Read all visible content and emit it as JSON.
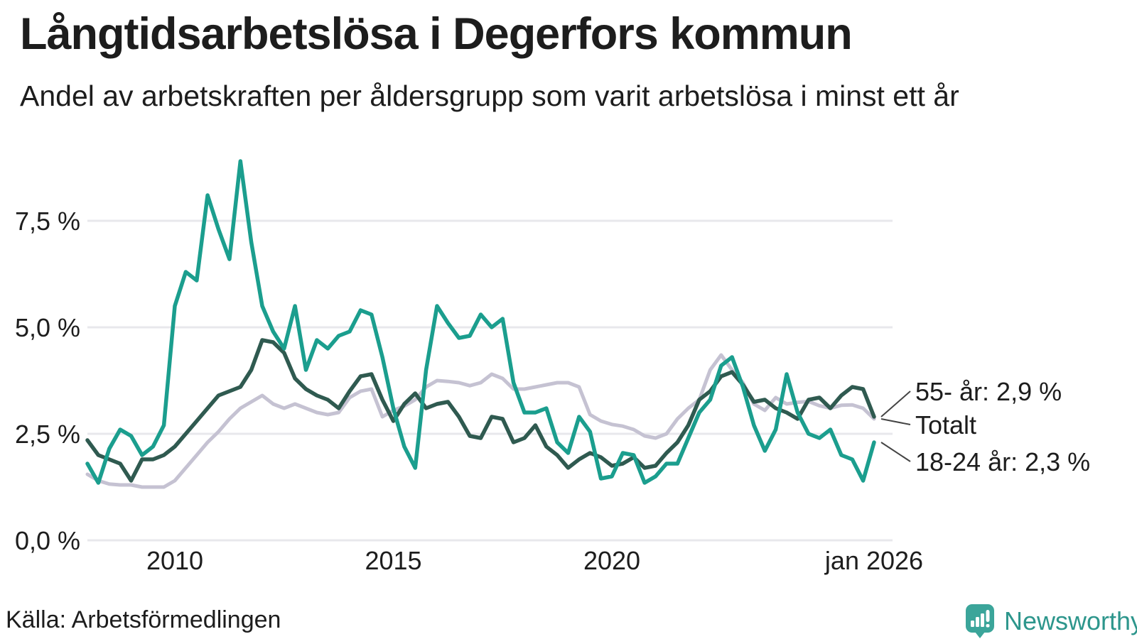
{
  "header": {
    "title": "Långtidsarbetslösa i Degerfors kommun",
    "subtitle": "Andel av arbetskraften per åldersgrupp som varit arbetslösa i minst ett år"
  },
  "source": {
    "label": "Källa: Arbetsförmedlingen"
  },
  "branding": {
    "name": "Newsworthy"
  },
  "colors": {
    "series_18_24": "#1b9e8e",
    "series_55": "#2f5a50",
    "series_total": "#c5c2d2",
    "grid": "#e8e8ec",
    "text": "#1d1d1d",
    "leader": "#444444",
    "logo_bubble": "#3ba59a",
    "logo_glyph": "#ffffff",
    "logo_text": "#2d968c"
  },
  "chart_data": {
    "type": "line",
    "title": "Långtidsarbetslösa i Degerfors kommun",
    "subtitle": "Andel av arbetskraften per åldersgrupp som varit arbetslösa i minst ett år",
    "xlabel": "",
    "ylabel": "",
    "xlim": [
      2008.0,
      2026.1
    ],
    "ylim": [
      0,
      9.5
    ],
    "grid": true,
    "legend_position": "end-labels-right",
    "y_ticks": [
      {
        "y": 0.0,
        "label": "0,0 %"
      },
      {
        "y": 2.5,
        "label": "2,5 %"
      },
      {
        "y": 5.0,
        "label": "5,0 %"
      },
      {
        "y": 7.5,
        "label": "7,5 %"
      }
    ],
    "x_ticks": [
      {
        "x": 2010,
        "label": "2010"
      },
      {
        "x": 2015,
        "label": "2015"
      },
      {
        "x": 2020,
        "label": "2020"
      },
      {
        "x": 2026,
        "label": "jan 2026"
      }
    ],
    "x": [
      2008.0,
      2008.25,
      2008.5,
      2008.75,
      2009.0,
      2009.25,
      2009.5,
      2009.75,
      2010.0,
      2010.25,
      2010.5,
      2010.75,
      2011.0,
      2011.25,
      2011.5,
      2011.75,
      2012.0,
      2012.25,
      2012.5,
      2012.75,
      2013.0,
      2013.25,
      2013.5,
      2013.75,
      2014.0,
      2014.25,
      2014.5,
      2014.75,
      2015.0,
      2015.25,
      2015.5,
      2015.75,
      2016.0,
      2016.25,
      2016.5,
      2016.75,
      2017.0,
      2017.25,
      2017.5,
      2017.75,
      2018.0,
      2018.25,
      2018.5,
      2018.75,
      2019.0,
      2019.25,
      2019.5,
      2019.75,
      2020.0,
      2020.25,
      2020.5,
      2020.75,
      2021.0,
      2021.25,
      2021.5,
      2021.75,
      2022.0,
      2022.25,
      2022.5,
      2022.75,
      2023.0,
      2023.25,
      2023.5,
      2023.75,
      2024.0,
      2024.25,
      2024.5,
      2024.75,
      2025.0,
      2025.25,
      2025.5,
      2025.75,
      2026.0
    ],
    "series": [
      {
        "name": "Totalt",
        "end_label": "Totalt",
        "end_value_label": "",
        "color_key": "series_total",
        "values": [
          1.55,
          1.4,
          1.32,
          1.3,
          1.3,
          1.25,
          1.25,
          1.25,
          1.4,
          1.7,
          2.0,
          2.3,
          2.55,
          2.85,
          3.1,
          3.25,
          3.4,
          3.2,
          3.1,
          3.2,
          3.1,
          3.0,
          2.95,
          3.0,
          3.35,
          3.5,
          3.55,
          2.9,
          3.05,
          3.15,
          3.3,
          3.6,
          3.75,
          3.73,
          3.7,
          3.63,
          3.7,
          3.9,
          3.8,
          3.55,
          3.55,
          3.6,
          3.65,
          3.7,
          3.7,
          3.6,
          2.95,
          2.8,
          2.72,
          2.68,
          2.6,
          2.45,
          2.4,
          2.5,
          2.85,
          3.1,
          3.3,
          4.0,
          4.35,
          4.0,
          3.7,
          3.2,
          3.05,
          3.35,
          3.2,
          3.24,
          3.26,
          3.16,
          3.1,
          3.17,
          3.18,
          3.1,
          2.85
        ]
      },
      {
        "name": "55- år",
        "end_label": "55- år: 2,9 %",
        "end_value_label": "2,9 %",
        "color_key": "series_55",
        "values": [
          2.35,
          2.0,
          1.9,
          1.8,
          1.4,
          1.9,
          1.9,
          2.0,
          2.2,
          2.5,
          2.8,
          3.1,
          3.4,
          3.5,
          3.6,
          4.0,
          4.7,
          4.65,
          4.4,
          3.8,
          3.55,
          3.4,
          3.3,
          3.1,
          3.5,
          3.85,
          3.9,
          3.3,
          2.8,
          3.2,
          3.45,
          3.1,
          3.2,
          3.25,
          2.9,
          2.45,
          2.4,
          2.9,
          2.85,
          2.3,
          2.4,
          2.7,
          2.2,
          2.0,
          1.7,
          1.9,
          2.05,
          1.95,
          1.75,
          1.8,
          1.95,
          1.7,
          1.75,
          2.05,
          2.3,
          2.7,
          3.3,
          3.5,
          3.85,
          3.95,
          3.65,
          3.25,
          3.3,
          3.1,
          3.0,
          2.85,
          3.3,
          3.35,
          3.1,
          3.4,
          3.6,
          3.55,
          2.9
        ]
      },
      {
        "name": "18-24 år",
        "end_label": "18-24 år: 2,3 %",
        "end_value_label": "2,3 %",
        "color_key": "series_18_24",
        "values": [
          1.8,
          1.35,
          2.15,
          2.6,
          2.45,
          2.0,
          2.2,
          2.7,
          5.5,
          6.3,
          6.1,
          8.1,
          7.3,
          6.6,
          8.9,
          7.0,
          5.5,
          4.9,
          4.5,
          5.5,
          4.0,
          4.7,
          4.5,
          4.8,
          4.9,
          5.4,
          5.3,
          4.3,
          3.1,
          2.2,
          1.7,
          4.0,
          5.5,
          5.1,
          4.75,
          4.8,
          5.3,
          5.0,
          5.2,
          3.7,
          3.0,
          3.0,
          3.1,
          2.3,
          2.05,
          2.9,
          2.55,
          1.45,
          1.5,
          2.05,
          2.0,
          1.35,
          1.5,
          1.8,
          1.8,
          2.4,
          3.0,
          3.3,
          4.1,
          4.3,
          3.6,
          2.7,
          2.1,
          2.6,
          3.9,
          3.0,
          2.5,
          2.4,
          2.6,
          2.0,
          1.9,
          1.4,
          2.3
        ]
      }
    ]
  }
}
